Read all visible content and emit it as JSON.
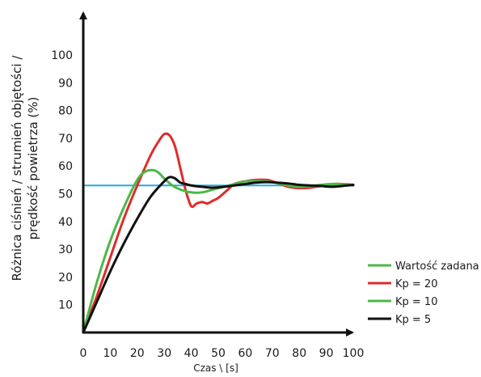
{
  "chart_data": {
    "type": "line",
    "title": "",
    "xlabel": "Czas \\ [s]",
    "ylabel_lines": [
      "Różnica ciśnień / strumień objętości /",
      "prędkość powietrza (%)"
    ],
    "xlim": [
      0,
      100
    ],
    "ylim": [
      0,
      100
    ],
    "x_ticks": [
      "0",
      "10",
      "20",
      "30",
      "40",
      "50",
      "60",
      "70",
      "80",
      "90",
      "100"
    ],
    "y_ticks": [
      "10",
      "20",
      "30",
      "40",
      "50",
      "60",
      "70",
      "80",
      "90",
      "100"
    ],
    "grid": false,
    "legend_position": "bottom-right",
    "series": [
      {
        "name": "Wartość zadana",
        "color": "#26a9e0",
        "legend_color": "#4cb848",
        "x": [
          0,
          100
        ],
        "y": [
          53,
          53
        ]
      },
      {
        "name": "Kp = 20",
        "color": "#e02b2b",
        "x": [
          0,
          5,
          10,
          15,
          20,
          25,
          28,
          30,
          32,
          34,
          36,
          38,
          40,
          42,
          44,
          46,
          48,
          50,
          53,
          56,
          60,
          64,
          68,
          70,
          73,
          76,
          80,
          84,
          88,
          92,
          96,
          100
        ],
        "y": [
          0,
          13,
          27,
          41,
          53,
          64,
          69,
          71.5,
          71,
          67,
          59,
          51,
          45.5,
          46.5,
          47,
          46.5,
          47.5,
          48.5,
          51,
          53.5,
          54.5,
          55,
          55,
          54.5,
          53.5,
          52.5,
          52,
          52.2,
          52.8,
          53.5,
          53.5,
          53.2
        ]
      },
      {
        "name": "Kp = 10",
        "color": "#4cb848",
        "x": [
          0,
          5,
          10,
          15,
          20,
          23,
          26,
          28,
          30,
          33,
          36,
          40,
          44,
          48,
          52,
          56,
          60,
          64,
          68,
          72,
          76,
          80,
          84,
          88,
          92,
          96,
          100
        ],
        "y": [
          0,
          18,
          33,
          45,
          55,
          58,
          58.5,
          57.5,
          55.5,
          53,
          51.5,
          50.5,
          50.5,
          51.5,
          52.5,
          53.5,
          54.5,
          54.5,
          54.5,
          53.8,
          53,
          52.5,
          52.7,
          53.2,
          53.5,
          53.4,
          53
        ]
      },
      {
        "name": "Kp = 5",
        "color": "#111111",
        "x": [
          0,
          5,
          10,
          15,
          20,
          25,
          30,
          32,
          34,
          36,
          38,
          40,
          44,
          48,
          52,
          56,
          60,
          64,
          68,
          72,
          76,
          80,
          84,
          88,
          92,
          96,
          100
        ],
        "y": [
          0,
          11,
          22,
          32,
          41,
          49,
          54.5,
          56,
          55.5,
          54,
          53.5,
          53,
          52.5,
          52.2,
          52.5,
          53,
          53.5,
          54,
          54.2,
          54,
          53.7,
          53.2,
          53,
          52.8,
          52.5,
          52.8,
          53.2
        ]
      }
    ]
  }
}
